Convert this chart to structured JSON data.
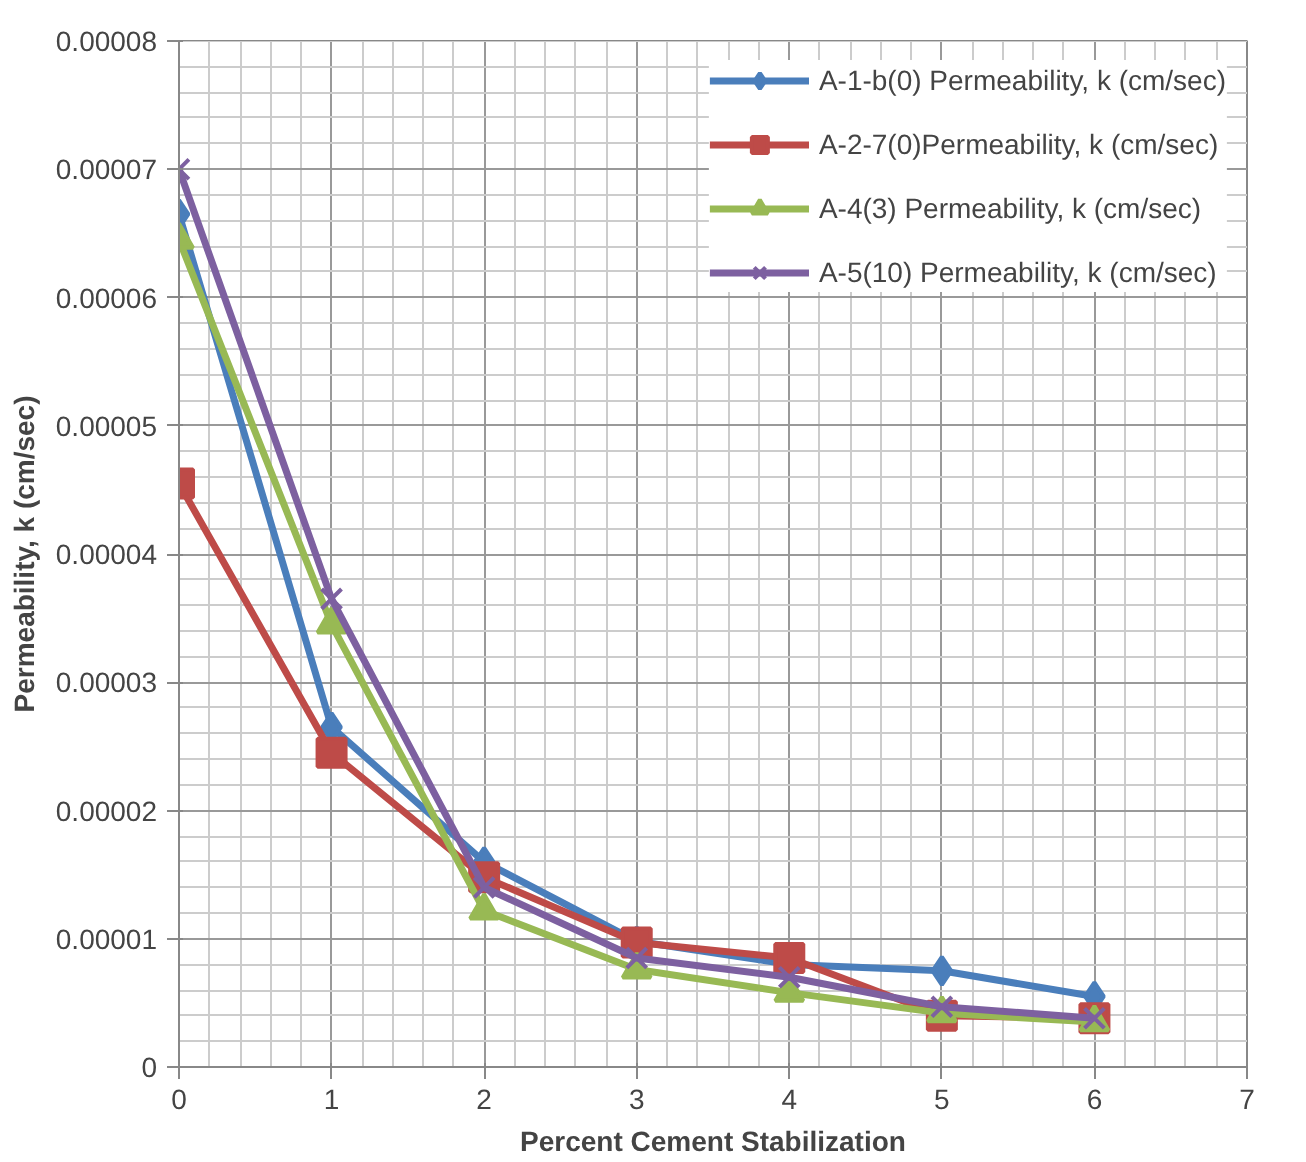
{
  "chart_data": {
    "type": "line",
    "xlabel": "Percent Cement Stabilization",
    "ylabel": "Permeability, k (cm/sec)",
    "x": [
      0,
      1,
      2,
      3,
      4,
      5,
      6
    ],
    "series": [
      {
        "name": "A-1-b(0) Permeability, k (cm/sec)",
        "color": "#4a7ebb",
        "marker": "diamond",
        "values": [
          6.65e-05,
          2.65e-05,
          1.6e-05,
          9.8e-06,
          8e-06,
          7.5e-06,
          5.5e-06
        ]
      },
      {
        "name": "A-2-7(0)Permeability, k (cm/sec)",
        "color": "#be4b48",
        "marker": "square",
        "values": [
          4.55e-05,
          2.45e-05,
          1.48e-05,
          9.7e-06,
          8.5e-06,
          4e-06,
          3.8e-06
        ]
      },
      {
        "name": "A-4(3) Permeability, k (cm/sec)",
        "color": "#98b954",
        "marker": "triangle",
        "values": [
          6.45e-05,
          3.45e-05,
          1.22e-05,
          7.6e-06,
          5.8e-06,
          4.2e-06,
          3.5e-06
        ]
      },
      {
        "name": "A-5(10) Permeability, k (cm/sec)",
        "color": "#7d60a0",
        "marker": "cross",
        "values": [
          7e-05,
          3.65e-05,
          1.4e-05,
          8.5e-06,
          7e-06,
          4.7e-06,
          3.8e-06
        ]
      }
    ],
    "xlim": [
      0,
      7
    ],
    "xticks": [
      0,
      1,
      2,
      3,
      4,
      5,
      6,
      7
    ],
    "ylim": [
      0,
      8e-05
    ],
    "yticks": [
      {
        "value": 0,
        "label": "0"
      },
      {
        "value": 1e-05,
        "label": "0.00001"
      },
      {
        "value": 2e-05,
        "label": "0.00002"
      },
      {
        "value": 3e-05,
        "label": "0.00003"
      },
      {
        "value": 4e-05,
        "label": "0.00004"
      },
      {
        "value": 5e-05,
        "label": "0.00005"
      },
      {
        "value": 6e-05,
        "label": "0.00006"
      },
      {
        "value": 7e-05,
        "label": "0.00007"
      },
      {
        "value": 8e-05,
        "label": "0.00008"
      }
    ],
    "grid": true,
    "legend": "top right",
    "line_style": "solid"
  }
}
